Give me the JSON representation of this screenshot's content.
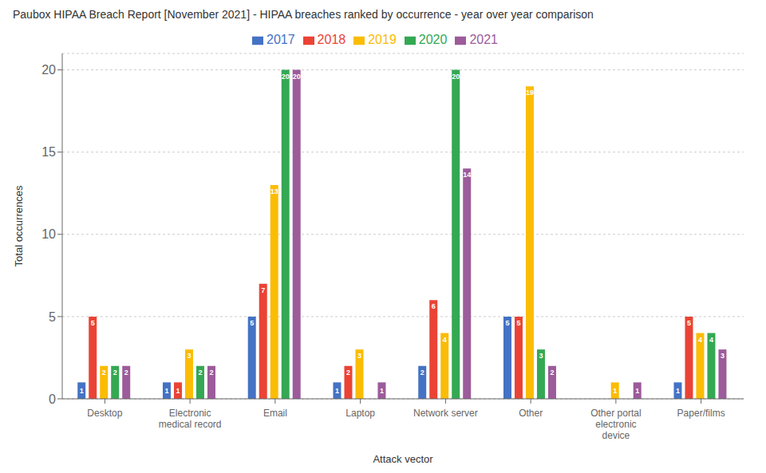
{
  "chart_data": {
    "type": "bar",
    "title": "Paubox HIPAA Breach Report [November 2021] - HIPAA breaches ranked by occurrence - year over year comparison",
    "xlabel": "Attack vector",
    "ylabel": "Total occurrences",
    "categories": [
      "Desktop",
      "Electronic medical record",
      "Email",
      "Laptop",
      "Network server",
      "Other",
      "Other portal electronic device",
      "Paper/films"
    ],
    "series": [
      {
        "name": "2017",
        "color": "#4472c4",
        "values": [
          1,
          1,
          5,
          1,
          2,
          5,
          0,
          1
        ]
      },
      {
        "name": "2018",
        "color": "#ea4335",
        "values": [
          5,
          1,
          7,
          2,
          6,
          5,
          0,
          5
        ]
      },
      {
        "name": "2019",
        "color": "#fbbc04",
        "values": [
          2,
          3,
          13,
          3,
          4,
          19,
          1,
          4
        ]
      },
      {
        "name": "2020",
        "color": "#34a853",
        "values": [
          2,
          2,
          20,
          0,
          20,
          3,
          0,
          4
        ]
      },
      {
        "name": "2021",
        "color": "#9c5b9a",
        "values": [
          2,
          2,
          20,
          1,
          14,
          2,
          1,
          3
        ]
      }
    ],
    "ylim": [
      0,
      21
    ],
    "yticks": [
      0,
      5,
      10,
      15,
      20
    ],
    "grid": true,
    "legend": "top",
    "data_labels": true
  }
}
